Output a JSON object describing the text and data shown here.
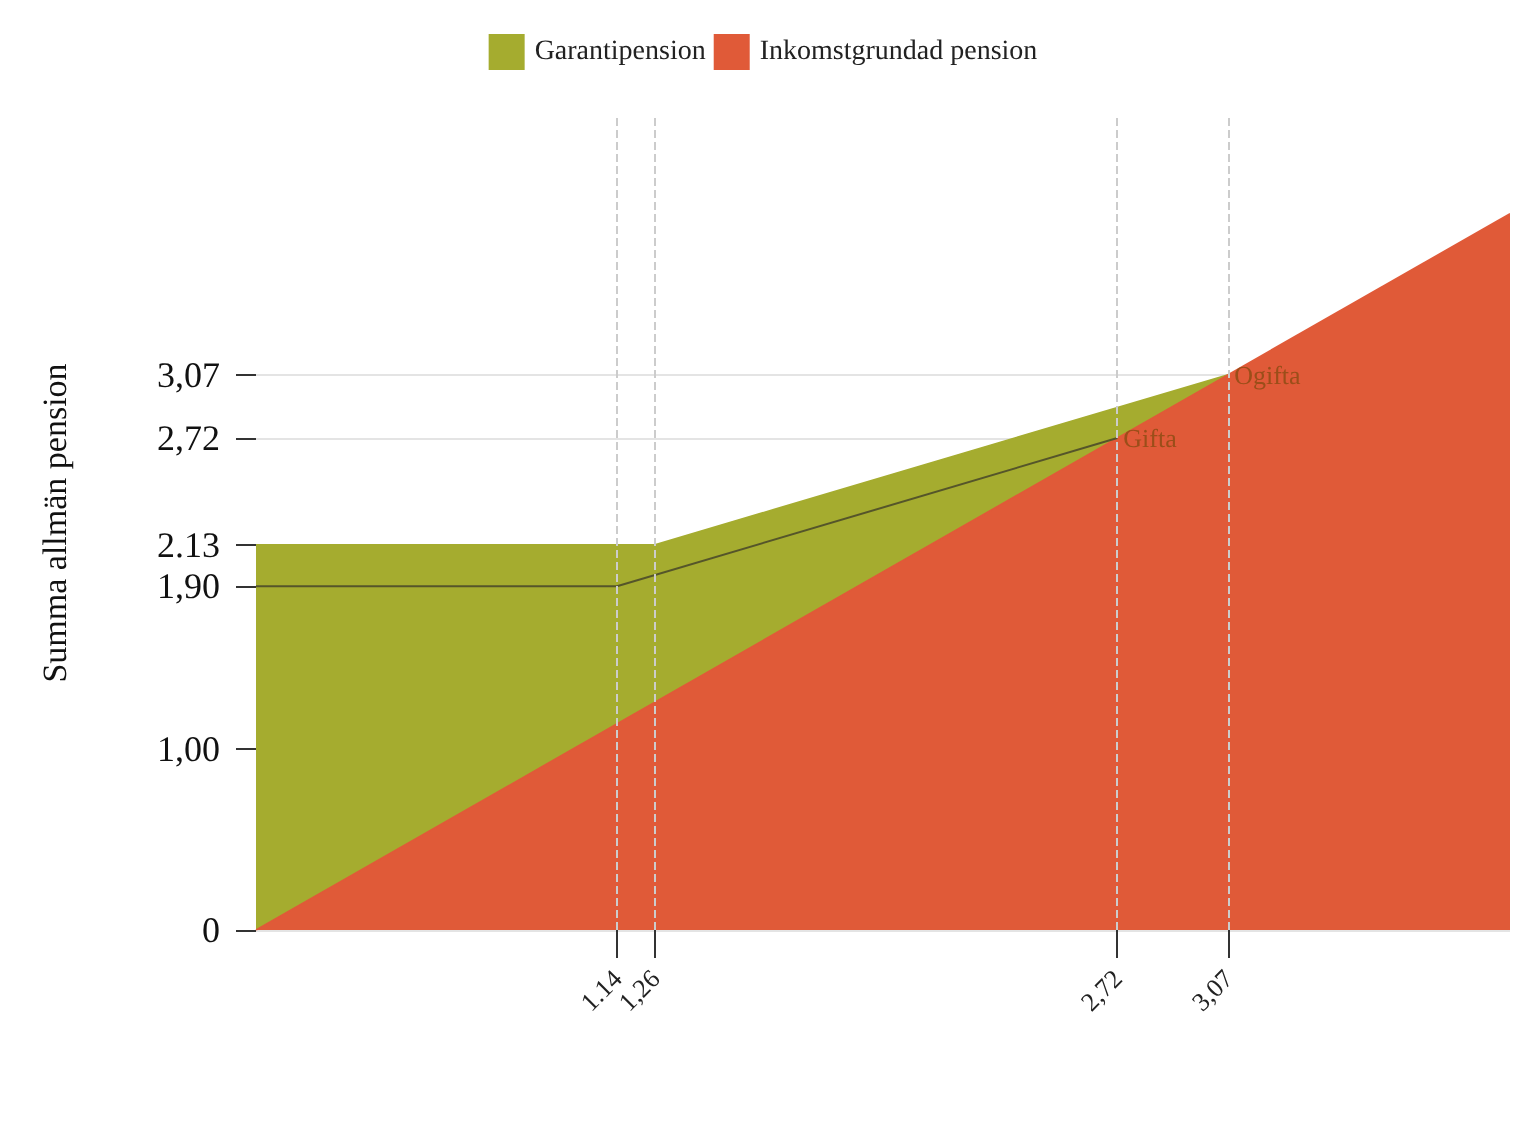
{
  "chart_data": {
    "type": "area",
    "ylabel": "Summa allmän pension",
    "xlim": [
      0,
      3.96
    ],
    "ylim": [
      0,
      4.5
    ],
    "xticks": [
      {
        "value": 1.14,
        "label": "1.14"
      },
      {
        "value": 1.26,
        "label": "1,26"
      },
      {
        "value": 2.72,
        "label": "2,72"
      },
      {
        "value": 3.07,
        "label": "3,07"
      }
    ],
    "yticks": [
      0,
      {
        "value": 1.0,
        "label": "1,00"
      },
      {
        "value": 1.9,
        "label": "1,90"
      },
      {
        "value": 2.13,
        "label": "2.13"
      },
      {
        "value": 2.72,
        "label": "2,72"
      },
      {
        "value": 3.07,
        "label": "3,07"
      }
    ],
    "grid": "y",
    "legend": "top",
    "series": [
      {
        "name": "Garantipension",
        "color": "#a5ac2f",
        "x": [
          0,
          1.26,
          3.07
        ],
        "values": [
          2.13,
          2.13,
          3.07
        ]
      },
      {
        "name": "Inkomstgrundad pension",
        "color": "#e05a38",
        "x": [
          0,
          3.96
        ],
        "values": [
          0,
          3.96
        ]
      },
      {
        "type": "line",
        "color": "#55552a",
        "x": [
          0,
          1.14,
          2.72
        ],
        "values": [
          1.9,
          1.9,
          2.72
        ]
      }
    ],
    "ref_lines": [
      {
        "axis": "x",
        "value": 1.14,
        "color": "#cccccc",
        "line_style": "dashed"
      },
      {
        "axis": "x",
        "value": 1.26,
        "color": "#cccccc",
        "line_style": "dashed"
      },
      {
        "axis": "x",
        "value": 2.72,
        "color": "#cccccc",
        "line_style": "dashed"
      },
      {
        "axis": "x",
        "value": 3.07,
        "color": "#cccccc",
        "line_style": "dashed"
      }
    ],
    "annotations": [
      {
        "text": "Gifta",
        "x": 2.72,
        "y": 2.72
      },
      {
        "text": "Ogifta",
        "x": 3.07,
        "y": 3.07
      }
    ]
  }
}
